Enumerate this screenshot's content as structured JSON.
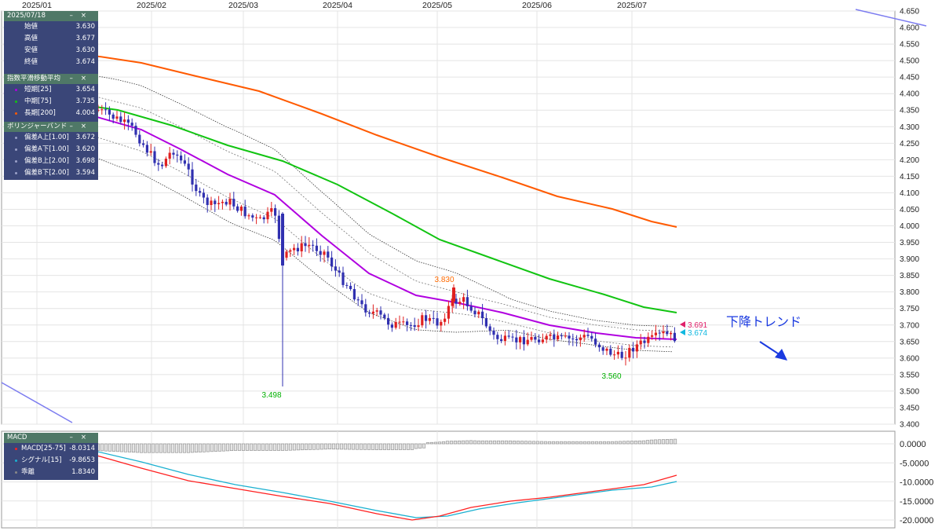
{
  "x_axis_labels": [
    "2025/01",
    "2025/02",
    "2025/03",
    "2025/04",
    "2025/05",
    "2025/06",
    "2025/07"
  ],
  "price_axis": {
    "min": 3.4,
    "max": 4.65,
    "step": 0.05
  },
  "macd_axis": {
    "labels": [
      "0.0000",
      "-5.0000",
      "-10.0000",
      "-15.0000",
      "-20.0000"
    ]
  },
  "ohlc_panel": {
    "date": "2025/07/18",
    "rows": [
      {
        "label": "始値",
        "value": "3.630"
      },
      {
        "label": "高値",
        "value": "3.677"
      },
      {
        "label": "安値",
        "value": "3.630"
      },
      {
        "label": "終値",
        "value": "3.674"
      }
    ]
  },
  "ema_panel": {
    "title": "指数平滑移動平均",
    "rows": [
      {
        "label": "短期[25]",
        "value": "3.654",
        "color": "#b000e0"
      },
      {
        "label": "中期[75]",
        "value": "3.735",
        "color": "#12c412"
      },
      {
        "label": "長期[200]",
        "value": "4.004",
        "color": "#ff5a00"
      }
    ]
  },
  "bb_panel": {
    "title": "ボリンジャーバンド",
    "rows": [
      {
        "label": "偏差A上[1.00]",
        "value": "3.672"
      },
      {
        "label": "偏差A下[1.00]",
        "value": "3.620"
      },
      {
        "label": "偏差B上[2.00]",
        "value": "3.698"
      },
      {
        "label": "偏差B下[2.00]",
        "value": "3.594"
      }
    ]
  },
  "macd_panel": {
    "title": "MACD",
    "rows": [
      {
        "label": "MACD[25-75]",
        "value": "-8.0314",
        "color": "#ff2020"
      },
      {
        "label": "シグナル[15]",
        "value": "-9.8653",
        "color": "#1ab0d0"
      },
      {
        "label": "乖離",
        "value": "1.8340",
        "color": "#888888"
      }
    ]
  },
  "annotations": {
    "low1": "3.498",
    "high1": "3.830",
    "low2": "3.560",
    "last_high": "3.691",
    "last_close": "3.674",
    "trend_text": "下降トレンド"
  },
  "colors": {
    "up": "#e02020",
    "down": "#3030b0",
    "ema_short": "#b000e0",
    "ema_mid": "#12c412",
    "ema_long": "#ff5a00",
    "bb": "#555555",
    "macd": "#ff2020",
    "signal": "#1ab0d0",
    "trendline": "#7c7cf0",
    "annot_green": "#00b000",
    "annot_orange": "#ff6a00",
    "annot_pink": "#e0206a",
    "annot_cyan": "#10b8e0",
    "annot_blue": "#1a3ae0"
  },
  "chart_data": [
    {
      "type": "line",
      "x": [
        "2025-01",
        "2025-02",
        "2025-03",
        "2025-04",
        "2025-05",
        "2025-06",
        "2025-07"
      ],
      "series": [
        {
          "name": "短期[25]",
          "values": [
            4.38,
            4.28,
            4.05,
            3.82,
            3.69,
            3.67,
            3.654
          ]
        },
        {
          "name": "中期[75]",
          "values": [
            4.41,
            4.37,
            4.25,
            4.06,
            3.91,
            3.78,
            3.735
          ]
        },
        {
          "name": "長期[200]",
          "values": [
            4.56,
            4.49,
            4.39,
            4.28,
            4.16,
            4.07,
            4.004
          ]
        }
      ],
      "ylim": [
        3.4,
        4.65
      ]
    },
    {
      "type": "line",
      "x": [
        "2025-01",
        "2025-02",
        "2025-03",
        "2025-04",
        "2025-05",
        "2025-06",
        "2025-07"
      ],
      "series": [
        {
          "name": "MACD[25-75]",
          "values": [
            0,
            -3.5,
            -11,
            -15,
            -19.5,
            -14,
            -8.03
          ]
        },
        {
          "name": "シグナル[15]",
          "values": [
            0,
            -3,
            -9,
            -14.5,
            -18.5,
            -15,
            -9.87
          ]
        },
        {
          "name": "乖離",
          "values": [
            0,
            -1.2,
            -2.2,
            -1.2,
            0.3,
            1.2,
            1.83
          ]
        }
      ],
      "ylim": [
        -20,
        2
      ]
    }
  ]
}
